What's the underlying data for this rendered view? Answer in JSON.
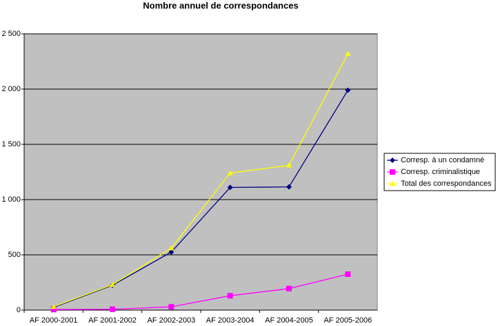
{
  "chart_data": {
    "type": "line",
    "title": "Nombre annuel de correspondances",
    "categories": [
      "AF 2000-2001",
      "AF 2001-2002",
      "AF 2002-2003",
      "AF 2003-2004",
      "AF 2004-2005",
      "AF 2005-2006"
    ],
    "series": [
      {
        "name": "Corresp. à un condamné",
        "color": "#000080",
        "marker": "diamond",
        "values": [
          25,
          225,
          525,
          1110,
          1115,
          1990
        ]
      },
      {
        "name": "Corresp. criminalistique",
        "color": "#ff00ff",
        "marker": "square",
        "values": [
          5,
          8,
          30,
          130,
          195,
          325
        ]
      },
      {
        "name": "Total des correspondances",
        "color": "#ffff00",
        "marker": "triangle",
        "values": [
          30,
          230,
          560,
          1240,
          1310,
          2320
        ]
      }
    ],
    "ylim": [
      0,
      2500
    ],
    "yticks": [
      0,
      500,
      {
        "value": 1000,
        "label": "1 000"
      },
      {
        "value": 1500,
        "label": "1 500"
      },
      {
        "value": 2000,
        "label": "2 000"
      },
      {
        "value": 2500,
        "label": "2 500"
      }
    ],
    "grid": true,
    "legend": "right",
    "plot_background": "#c0c0c0"
  }
}
